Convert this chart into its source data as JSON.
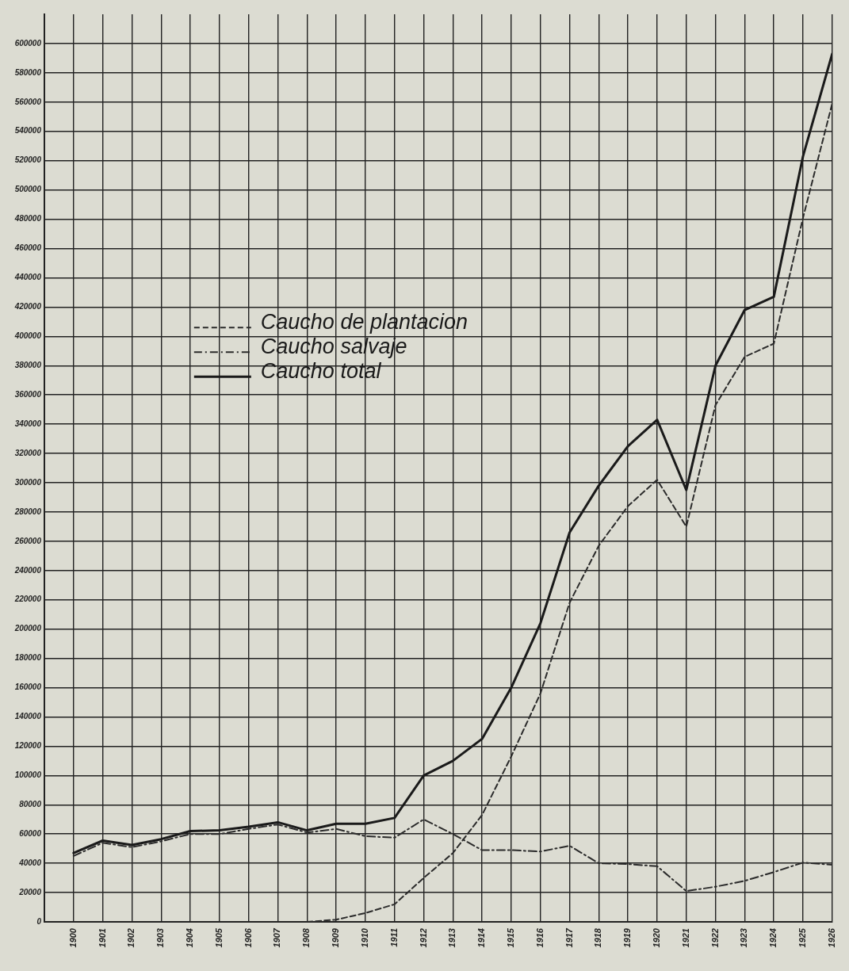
{
  "chart_data": {
    "type": "line",
    "x": [
      1900,
      1901,
      1902,
      1903,
      1904,
      1905,
      1906,
      1907,
      1908,
      1909,
      1910,
      1911,
      1912,
      1913,
      1914,
      1915,
      1916,
      1917,
      1918,
      1919,
      1920,
      1921,
      1922,
      1923,
      1924,
      1925,
      1926
    ],
    "series": [
      {
        "name": "Caucho de plantacion",
        "color": "#2b2b2b",
        "line_style": "dashed",
        "values": [
          null,
          null,
          null,
          null,
          null,
          null,
          null,
          null,
          0,
          1500,
          6000,
          12000,
          30000,
          47000,
          73000,
          113000,
          156000,
          218000,
          257000,
          284000,
          302000,
          270000,
          353000,
          386000,
          395000,
          481000,
          559000
        ]
      },
      {
        "name": "Caucho salvaje",
        "color": "#2b2b2b",
        "line_style": "dotted",
        "values": [
          45000,
          54000,
          51000,
          55000,
          60000,
          60000,
          63500,
          66500,
          61000,
          63500,
          58500,
          57500,
          70000,
          60000,
          49000,
          49000,
          48000,
          52000,
          40000,
          39500,
          38000,
          21000,
          24000,
          28000,
          34000,
          40500,
          39000
        ]
      },
      {
        "name": "Caucho total",
        "color": "#1a1a1a",
        "line_style": "solid",
        "values": [
          47000,
          55500,
          52500,
          56500,
          62000,
          62500,
          65000,
          68000,
          62500,
          67000,
          67000,
          71000,
          100000,
          110000,
          125000,
          160000,
          204000,
          266000,
          298000,
          325000,
          343000,
          295000,
          380000,
          418000,
          427000,
          523000,
          593000
        ]
      }
    ],
    "xlim": [
      1899,
      1926
    ],
    "xticks": [
      1900,
      1901,
      1902,
      1903,
      1904,
      1905,
      1906,
      1907,
      1908,
      1909,
      1910,
      1911,
      1912,
      1913,
      1914,
      1915,
      1916,
      1917,
      1918,
      1919,
      1920,
      1921,
      1922,
      1923,
      1924,
      1925,
      1926
    ],
    "ylim": [
      0,
      620000
    ],
    "yticks": [
      0,
      20000,
      40000,
      60000,
      80000,
      100000,
      120000,
      140000,
      160000,
      180000,
      200000,
      220000,
      240000,
      260000,
      280000,
      300000,
      320000,
      340000,
      360000,
      380000,
      400000,
      420000,
      440000,
      460000,
      480000,
      500000,
      520000,
      540000,
      560000,
      580000,
      600000
    ],
    "grid": true,
    "legend": "left",
    "marker": "none"
  }
}
